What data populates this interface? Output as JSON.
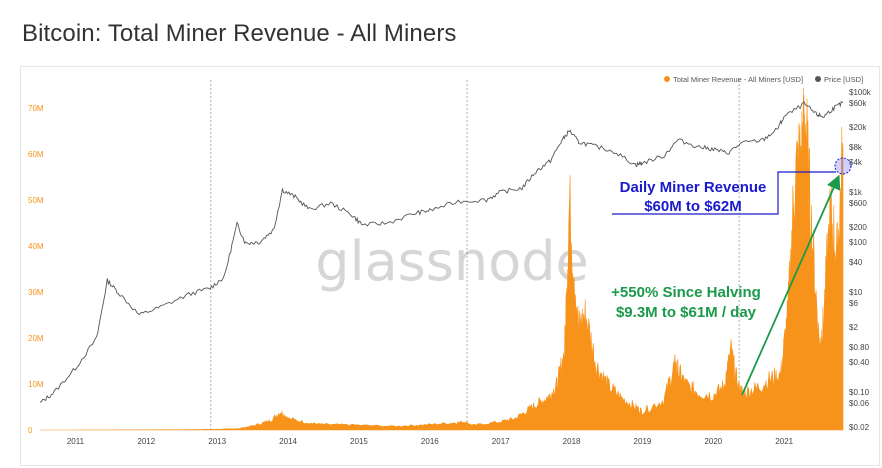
{
  "title": "Bitcoin: Total Miner Revenue - All Miners",
  "watermark": "glassnode",
  "colors": {
    "revenue": "#f7931a",
    "price": "#555555",
    "annotation_blue": "#1a1acd",
    "annotation_green": "#1a9a4a"
  },
  "chart_data": {
    "type": "area",
    "legend": [
      "Total Miner Revenue - All Miners [USD]",
      "Price [USD]"
    ],
    "legend_position": "top-right",
    "x_ticks": [
      "2011",
      "2012",
      "2013",
      "2014",
      "2015",
      "2016",
      "2017",
      "2018",
      "2019",
      "2020",
      "2021"
    ],
    "y_left_ticks": [
      "0",
      "10M",
      "20M",
      "30M",
      "40M",
      "50M",
      "60M",
      "70M"
    ],
    "y_left_range": [
      0,
      75000000
    ],
    "y_right_ticks": [
      "$0.02",
      "$0.06",
      "$0.10",
      "$0.40",
      "$0.80",
      "$2",
      "$6",
      "$10",
      "$40",
      "$100",
      "$200",
      "$600",
      "$1k",
      "$4k",
      "$8k",
      "$20k",
      "$60k",
      "$100k"
    ],
    "y_right_scale": "log",
    "y_right_range": [
      0.02,
      100000
    ],
    "halving_dates": [
      "2012-11-28",
      "2016-07-09",
      "2020-05-11"
    ],
    "series": [
      {
        "name": "Total Miner Revenue - All Miners [USD]",
        "axis": "left",
        "x": [
          2010.5,
          2011.0,
          2011.5,
          2012.0,
          2012.5,
          2013.0,
          2013.3,
          2013.5,
          2013.75,
          2013.9,
          2014.0,
          2014.3,
          2014.5,
          2014.9,
          2015.5,
          2015.9,
          2016.3,
          2016.5,
          2016.6,
          2017.0,
          2017.2,
          2017.4,
          2017.55,
          2017.7,
          2017.8,
          2017.9,
          2017.97,
          2018.1,
          2018.2,
          2018.35,
          2018.5,
          2018.7,
          2018.9,
          2019.0,
          2019.3,
          2019.45,
          2019.5,
          2019.6,
          2019.8,
          2020.0,
          2020.15,
          2020.25,
          2020.35,
          2020.42,
          2020.6,
          2020.8,
          2020.95,
          2021.05,
          2021.15,
          2021.25,
          2021.3,
          2021.4,
          2021.5,
          2021.55,
          2021.65,
          2021.75,
          2021.83
        ],
        "values": [
          0,
          10000,
          30000,
          40000,
          80000,
          150000,
          300000,
          900000,
          2000000,
          4000000,
          2500000,
          1500000,
          1200000,
          1100000,
          800000,
          1100000,
          1500000,
          1800000,
          1000000,
          1800000,
          2500000,
          4500000,
          6000000,
          7500000,
          10000000,
          17000000,
          49000000,
          22000000,
          25000000,
          14000000,
          10000000,
          7000000,
          5000000,
          4000000,
          6500000,
          14000000,
          13000000,
          10000000,
          8000000,
          7500000,
          9500000,
          17000000,
          9300000,
          8000000,
          9000000,
          11000000,
          12000000,
          25000000,
          55000000,
          61000000,
          67000000,
          40000000,
          18000000,
          23000000,
          47000000,
          38000000,
          61000000
        ]
      },
      {
        "name": "Price [USD]",
        "axis": "right",
        "x": [
          2010.5,
          2010.7,
          2011.0,
          2011.3,
          2011.45,
          2011.6,
          2011.9,
          2012.2,
          2012.6,
          2012.9,
          2013.1,
          2013.28,
          2013.4,
          2013.6,
          2013.8,
          2013.92,
          2014.1,
          2014.3,
          2014.6,
          2014.9,
          2015.05,
          2015.4,
          2015.8,
          2016.0,
          2016.4,
          2016.8,
          2017.0,
          2017.3,
          2017.5,
          2017.7,
          2017.85,
          2017.97,
          2018.1,
          2018.3,
          2018.6,
          2018.9,
          2019.0,
          2019.3,
          2019.5,
          2019.8,
          2020.0,
          2020.2,
          2020.4,
          2020.7,
          2020.9,
          2021.0,
          2021.28,
          2021.45,
          2021.55,
          2021.7,
          2021.83
        ],
        "values": [
          0.06,
          0.1,
          0.3,
          1.2,
          17,
          10,
          3.5,
          5,
          9,
          12,
          20,
          230,
          95,
          100,
          180,
          1100,
          800,
          450,
          600,
          350,
          220,
          240,
          380,
          430,
          650,
          700,
          1000,
          1200,
          2600,
          4200,
          10000,
          17000,
          10000,
          8500,
          6500,
          3500,
          3800,
          5300,
          11000,
          8000,
          7200,
          6000,
          9500,
          11000,
          18000,
          32000,
          58000,
          36000,
          32000,
          48000,
          61000
        ]
      }
    ],
    "annotations": [
      {
        "text_line1": "Daily Miner Revenue",
        "text_line2": "$60M to $62M"
      },
      {
        "text_line1": "+550% Since Halving",
        "text_line2": "$9.3M to $61M / day"
      }
    ]
  }
}
